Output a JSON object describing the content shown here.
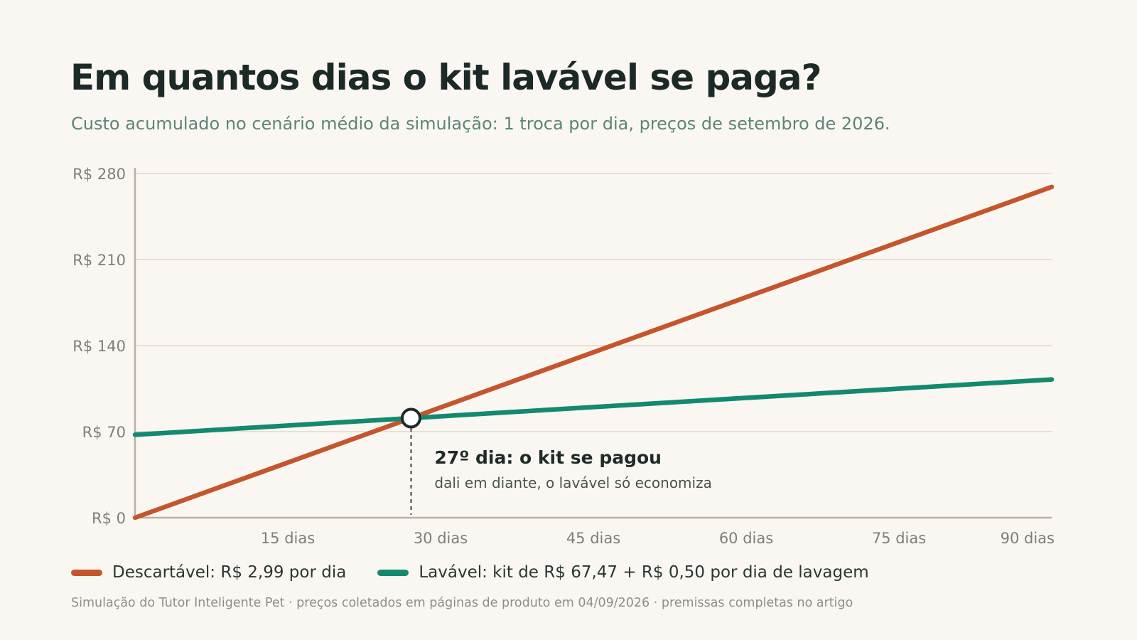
{
  "title": "Em quantos dias o kit lavável se paga?",
  "subtitle": "Custo acumulado no cenário médio da simulação: 1 troca por dia, preços de setembro de 2026.",
  "footnote": "Simulação do Tutor Inteligente Pet · preços coletados em páginas de produto em 04/09/2026 · premissas completas no artigo",
  "chart_data": {
    "type": "line",
    "xlim": [
      0,
      90
    ],
    "ylim": [
      0,
      280
    ],
    "grid": true,
    "x_ticks": [
      15,
      30,
      45,
      60,
      75,
      90
    ],
    "x_tick_labels": [
      "15 dias",
      "30 dias",
      "45 dias",
      "60 dias",
      "75 dias",
      "90 dias"
    ],
    "y_ticks": [
      0,
      70,
      140,
      210,
      280
    ],
    "y_tick_labels": [
      "R$ 0",
      "R$ 70",
      "R$ 140",
      "R$ 210",
      "R$ 280"
    ],
    "legend_position": "bottom",
    "series": [
      {
        "name": "Descartável: R$ 2,99 por dia",
        "color": "#c4552d",
        "x": [
          0,
          90
        ],
        "y": [
          0,
          269.1
        ]
      },
      {
        "name": "Lavável: kit de R$ 67,47 + R$ 0,50 por dia de lavagem",
        "color": "#138a6e",
        "x": [
          0,
          90
        ],
        "y": [
          67.47,
          112.47
        ]
      }
    ],
    "annotation": {
      "x": 27.1,
      "y": 81.0,
      "title": "27º dia: o kit se pagou",
      "text": "dali em diante, o lavável só economiza"
    }
  }
}
